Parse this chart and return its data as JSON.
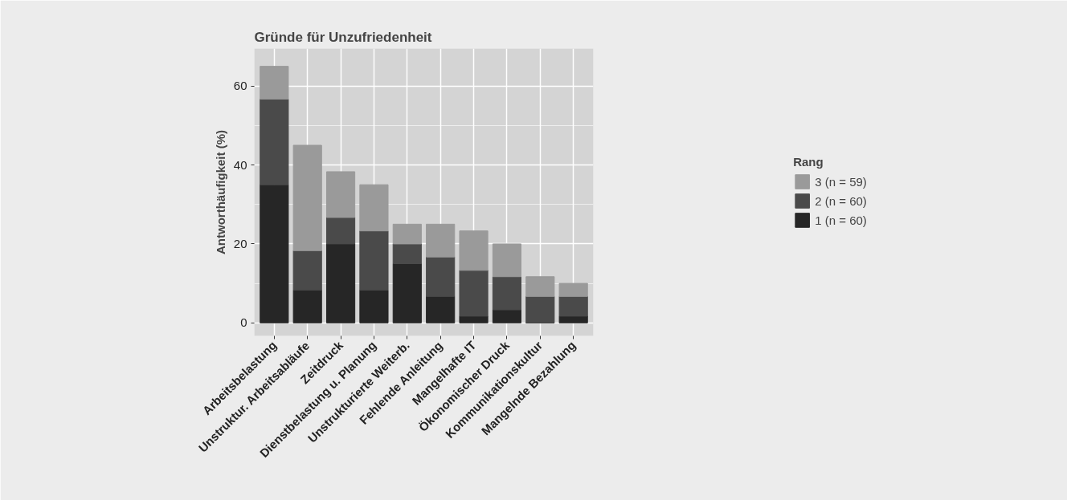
{
  "chart_data": {
    "type": "bar",
    "title": "Gründe für Unzufriedenheit",
    "ylabel": "Antworthäufigkeit (%)",
    "legend_title": "Rang",
    "categories": [
      "Arbeitsbelastung",
      "Unstruktur. Arbeitsabläufe",
      "Zeitdruck",
      "Dienstbelastung u. Planung",
      "Unstrukturierte Weiterb.",
      "Fehlende Anleitung",
      "Mangelhafte IT",
      "Ökonomischer Druck",
      "Kommunikationskultur",
      "Mangelnde Bezahlung"
    ],
    "series": [
      {
        "name": "1 (n = 60)",
        "color": "#262626",
        "values": [
          35,
          8.3,
          20,
          8.3,
          15,
          6.7,
          1.7,
          3.3,
          0,
          1.7
        ]
      },
      {
        "name": "2 (n = 60)",
        "color": "#4a4a4a",
        "values": [
          21.7,
          10,
          6.7,
          15,
          5,
          10,
          11.6,
          8.4,
          6.7,
          5
        ]
      },
      {
        "name": "3 (n = 59)",
        "color": "#9a9a9a",
        "values": [
          8.3,
          26.7,
          11.6,
          11.7,
          5,
          8.3,
          10,
          8.3,
          5,
          3.3
        ]
      }
    ],
    "stacked": true,
    "ylim": [
      -3.3,
      69.5
    ],
    "yticks": [
      0,
      20,
      40,
      60
    ],
    "grid": true,
    "legend": "right"
  }
}
